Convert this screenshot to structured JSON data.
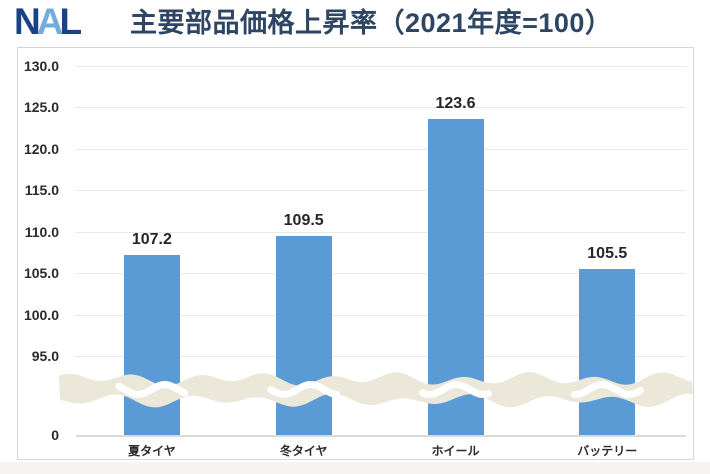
{
  "logo": {
    "text": "NAL",
    "letters": [
      {
        "char": "N",
        "color": "#1c4286"
      },
      {
        "char": "A",
        "color": "#74abdf"
      },
      {
        "char": "L",
        "color": "#1c4286"
      }
    ]
  },
  "header": {
    "title": "主要部品価格上昇率（2021年度=100）",
    "title_color": "#2e4663"
  },
  "chart_data": {
    "type": "bar",
    "title": "主要部品価格上昇率（2021年度=100）",
    "categories": [
      "夏タイヤ",
      "冬タイヤ",
      "ホイール",
      "バッテリー"
    ],
    "values": [
      107.2,
      109.5,
      123.6,
      105.5
    ],
    "value_labels": [
      "107.2",
      "109.5",
      "123.6",
      "105.5"
    ],
    "y_ticks": [
      130.0,
      125.0,
      120.0,
      115.0,
      110.0,
      105.0,
      100.0,
      95.0
    ],
    "y_baseline_label": "0",
    "ylim": [
      95,
      130
    ],
    "axis_break": true,
    "grid": true,
    "legend": "none",
    "xlabel": "",
    "ylabel": "",
    "colors": {
      "bar": "#5b9bd5",
      "break_band": "#ebe8da",
      "gridline": "#e8e8e5",
      "axis_line": "#d9d9d5",
      "tick_label": "#2b2b2b",
      "value_label": "#262626",
      "category_label": "#2b2b2b"
    }
  }
}
